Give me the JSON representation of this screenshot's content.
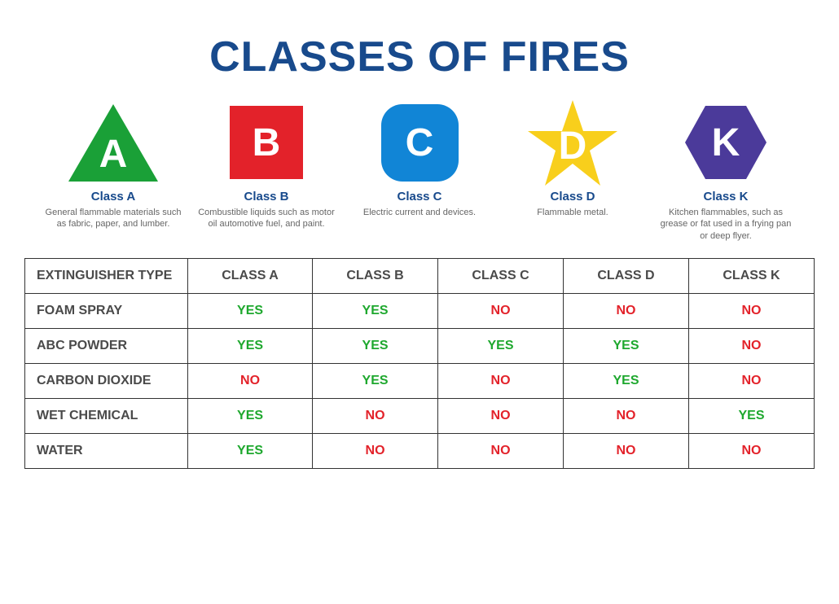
{
  "title": "CLASSES OF FIRES",
  "colors": {
    "title": "#184a8c",
    "class_label": "#184a8c",
    "desc": "#666666",
    "table_border": "#333333",
    "header_text": "#4a4a4a",
    "yes": "#1ea82e",
    "no": "#e3222a",
    "icon_letter": "#ffffff",
    "background": "#ffffff"
  },
  "classes": [
    {
      "letter": "A",
      "shape": "triangle",
      "fill": "#1aa037",
      "label": "Class A",
      "desc": "General flammable materials such as fabric, paper, and lumber."
    },
    {
      "letter": "B",
      "shape": "square",
      "fill": "#e3222a",
      "label": "Class B",
      "desc": "Combustible liquids such as motor oil automotive fuel, and paint."
    },
    {
      "letter": "C",
      "shape": "rounded-square",
      "fill": "#1185d6",
      "label": "Class C",
      "desc": "Electric current and devices."
    },
    {
      "letter": "D",
      "shape": "star",
      "fill": "#f8cf1c",
      "label": "Class D",
      "desc": "Flammable metal."
    },
    {
      "letter": "K",
      "shape": "hexagon",
      "fill": "#4b3a9a",
      "label": "Class K",
      "desc": "Kitchen flammables, such as grease or fat used in a frying pan or deep flyer."
    }
  ],
  "table": {
    "header_first": "EXTINGUISHER TYPE",
    "columns": [
      "CLASS A",
      "CLASS B",
      "CLASS C",
      "CLASS D",
      "CLASS K"
    ],
    "yes_label": "YES",
    "no_label": "NO",
    "rows": [
      {
        "name": "FOAM SPRAY",
        "cells": [
          "YES",
          "YES",
          "NO",
          "NO",
          "NO"
        ]
      },
      {
        "name": "ABC POWDER",
        "cells": [
          "YES",
          "YES",
          "YES",
          "YES",
          "NO"
        ]
      },
      {
        "name": "CARBON DIOXIDE",
        "cells": [
          "NO",
          "YES",
          "NO",
          "YES",
          "NO"
        ]
      },
      {
        "name": "WET CHEMICAL",
        "cells": [
          "YES",
          "NO",
          "NO",
          "NO",
          "YES"
        ]
      },
      {
        "name": "WATER",
        "cells": [
          "YES",
          "NO",
          "NO",
          "NO",
          "NO"
        ]
      }
    ]
  },
  "typography": {
    "title_fontsize": 52,
    "title_weight": 900,
    "icon_letter_fontsize": 48,
    "class_label_fontsize": 15,
    "class_desc_fontsize": 11,
    "table_fontsize": 16,
    "font_family": "Arial, Helvetica, sans-serif"
  }
}
